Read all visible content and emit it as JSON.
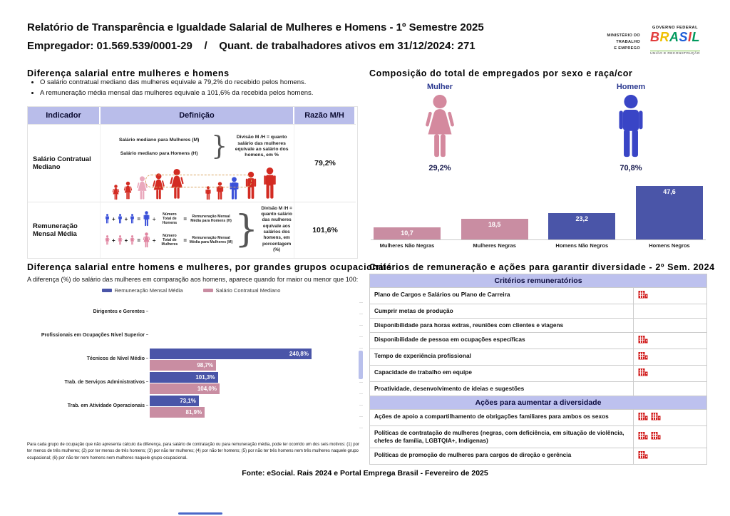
{
  "page": {
    "title_line1": "Relatório de Transparência e Igualdade Salarial de Mulheres e Homens - 1º Semestre 2025",
    "title_line2": "Empregador: 01.569.539/0001-29    /    Quant. de trabalhadores ativos em 31/12/2024: 271",
    "footer": "Fonte: eSocial. Rais 2024 e Portal Emprega Brasil - Fevereiro de 2025"
  },
  "logos": {
    "ministry_lines": [
      "MINISTÉRIO DO",
      "TRABALHO",
      "E EMPREGO"
    ],
    "gov_top": "GOVERNO FEDERAL",
    "gov_brand": "BRASIL",
    "gov_brand_colors": [
      "#e23b3b",
      "#f0c000",
      "#00995d",
      "#1b5dd7",
      "#e23b3b",
      "#00995d"
    ],
    "gov_bottom": "UNIÃO E RECONSTRUÇÃO"
  },
  "salary_diff": {
    "title": "Diferença salarial entre mulheres e homens",
    "bullet1": "O salário contratual mediano das mulheres equivale a 79,2% do recebido pelos homens.",
    "bullet2": "A remuneração média mensal das mulheres equivale a 101,6% da recebida pelos homens.",
    "col_indicator": "Indicador",
    "col_definition": "Definição",
    "col_ratio": "Razão M/H",
    "row1": {
      "indicator": "Salário Contratual Mediano",
      "women_label": "Salário mediano para Mulheres (M)",
      "men_label": "Salário mediano para Homens (H)",
      "note": "Divisão M /H = quanto salário das mulheres equivale ao salário dos homens, em %",
      "ratio": "79,2%"
    },
    "row2": {
      "indicator": "Remuneração Mensal Média",
      "plus": "+",
      "equals": "=",
      "divide": "÷",
      "men_divisor": "Número Total de Homens",
      "men_result": "Remuneração Mensal Média para Homens (H)",
      "women_divisor": "Número Total de Mulheres",
      "women_result": "Remuneração Mensal Média para Mulheres (M)",
      "note": "Divisão M /H = quanto salário das mulheres equivale aos salários dos homens, em porcentagem (%)",
      "ratio": "101,6%"
    }
  },
  "composition": {
    "title": "Composição do total de empregados por sexo e raça/cor",
    "female_label": "Mulher",
    "female_pct": "29,2%",
    "male_label": "Homem",
    "male_pct": "70,8%"
  },
  "occupational": {
    "title": "Diferença salarial entre homens e mulheres, por grandes grupos ocupacionais",
    "subtitle": "A diferença (%) do salário das mulheres em comparação aos homens, aparece quando for maior ou menor que 100:",
    "footnote": "Para cada grupo de ocupação que não apresenta cálculo da diferença, para salário de contratação ou para remuneração média, pode ter ocorrido um dos seis motivos: (1) por ter menos de três mulheres; (2) por ter menos de três homens; (3) por não ter mulheres; (4) por não ter homens; (5) por não ter três homens nem três mulheres naquele grupo ocupacional; (6) por não ter nem homens nem mulheres naquele grupo ocupacional."
  },
  "criteria": {
    "title": "Critérios de remuneração e ações para garantir diversidade - 2º Sem. 2024",
    "sections": [
      {
        "band": "Critérios remuneratórios",
        "rows": [
          {
            "text": "Plano de Cargos e Salários ou Plano de Carreira",
            "icons": 1
          },
          {
            "text": "Cumprir metas de produção",
            "icons": 0
          },
          {
            "text": "Disponibilidade para horas extras, reuniões com clientes e viagens",
            "icons": 0
          },
          {
            "text": "Disponibilidade de pessoa em ocupações específicas",
            "icons": 1
          },
          {
            "text": "Tempo de experiência profissional",
            "icons": 1
          },
          {
            "text": "Capacidade de trabalho em equipe",
            "icons": 1
          },
          {
            "text": "Proatividade, desenvolvimento de ideias e sugestões",
            "icons": 0
          }
        ]
      },
      {
        "band": "Ações para aumentar a diversidade",
        "rows": [
          {
            "text": "Ações de apoio a compartilhamento de obrigações familiares para ambos os sexos",
            "icons": 2
          },
          {
            "text": "Políticas de contratação de mulheres (negras, com deficiência, em situação de violência, chefes de família, LGBTQIA+, Indígenas)",
            "icons": 2
          },
          {
            "text": "Políticas de promoção de mulheres para cargos de direção e gerência",
            "icons": 1
          }
        ]
      }
    ]
  },
  "chart_data": [
    {
      "id": "composition_by_sex_race",
      "type": "bar",
      "title": "Composição do total de empregados por sexo e raça/cor",
      "categories": [
        "Mulheres Não Negras",
        "Mulheres Negras",
        "Homens Não Negros",
        "Homens Negros"
      ],
      "values": [
        10.7,
        18.5,
        23.2,
        47.6
      ],
      "value_labels": [
        "10,7",
        "18,5",
        "23,2",
        "47,6"
      ],
      "bar_colors": [
        "#c98da2",
        "#c98da2",
        "#4a55a8",
        "#4a55a8"
      ],
      "ylim": [
        0,
        50
      ],
      "grid": false,
      "summary": {
        "Mulher": 29.2,
        "Homem": 70.8
      }
    },
    {
      "id": "salary_gap_by_occupation",
      "type": "bar",
      "orientation": "horizontal",
      "title": "Diferença salarial entre homens e mulheres, por grandes grupos ocupacionais",
      "categories": [
        "Dirigentes e Gerentes",
        "Profissionais em Ocupações Nível Superior",
        "Técnicos de Nível Médio",
        "Trab. de Serviços Administrativos",
        "Trab. em Atividade Operacionais"
      ],
      "series": [
        {
          "name": "Remuneração Mensal Média",
          "color": "#4a55a8",
          "values": [
            null,
            null,
            240.8,
            101.3,
            73.1
          ],
          "value_labels": [
            null,
            null,
            "240,8%",
            "101,3%",
            "73,1%"
          ]
        },
        {
          "name": "Salário Contratual Mediano",
          "color": "#c98da2",
          "values": [
            null,
            null,
            98.7,
            104.0,
            81.9
          ],
          "value_labels": [
            null,
            null,
            "98,7%",
            "104,0%",
            "81,9%"
          ]
        }
      ],
      "xlim": [
        0,
        250
      ],
      "legend_position": "top",
      "grid": false
    }
  ]
}
